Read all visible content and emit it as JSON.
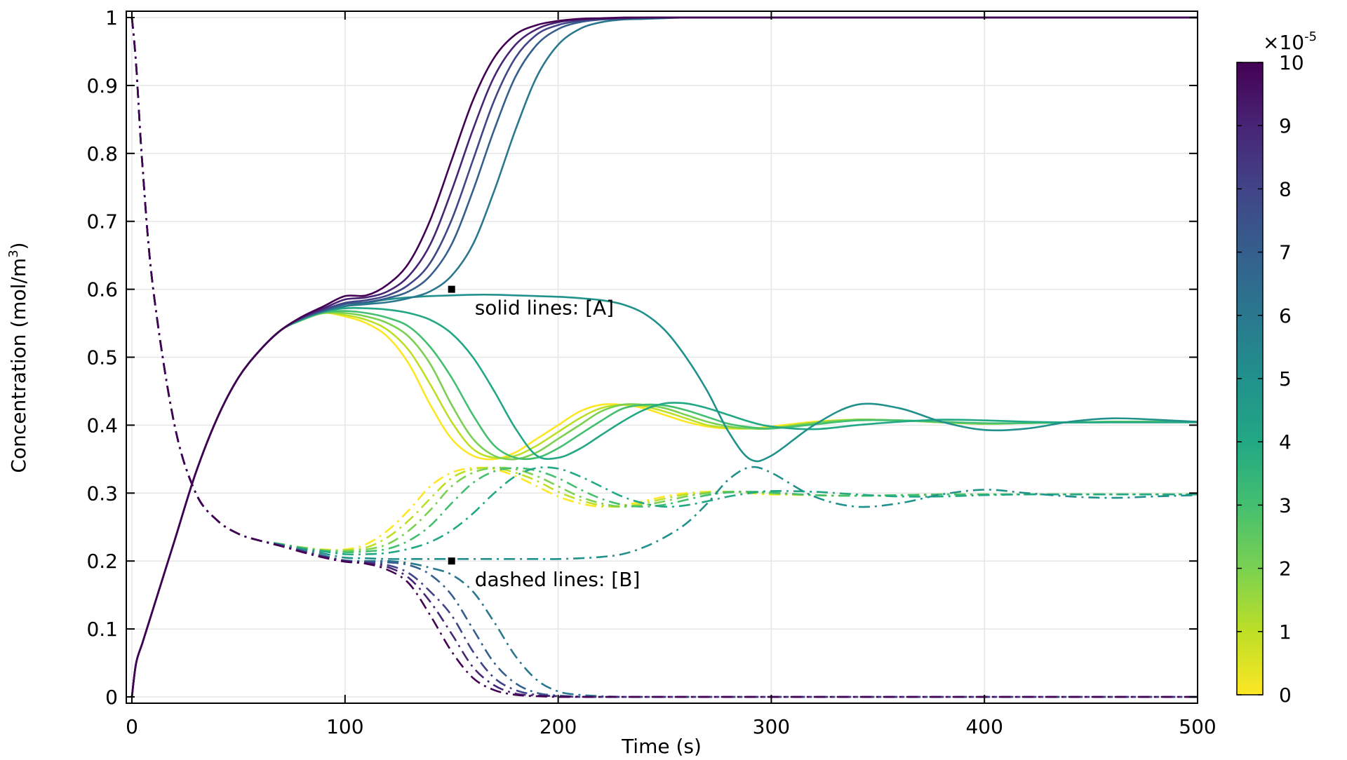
{
  "chart_data": {
    "type": "line",
    "xlabel": "Time (s)",
    "ylabel": "Concentration (mol/m³)",
    "ylabel_main": "Concentration (mol/m",
    "ylabel_sup": "3",
    "ylabel_end": ")",
    "xlim": [
      0,
      500
    ],
    "ylim": [
      0,
      1
    ],
    "xticks": [
      "0",
      "100",
      "200",
      "300",
      "400",
      "500"
    ],
    "yticks": [
      "0",
      "0.1",
      "0.2",
      "0.3",
      "0.4",
      "0.5",
      "0.6",
      "0.7",
      "0.8",
      "0.9",
      "1"
    ],
    "grid": true,
    "annotations": [
      {
        "text": "solid lines: [A]",
        "x": 150,
        "y": 0.6
      },
      {
        "text": "dashed lines: [B]",
        "x": 150,
        "y": 0.2
      }
    ],
    "colorbar": {
      "multiplier_base": "×10",
      "multiplier_exp": "-5",
      "range": [
        0,
        10
      ],
      "ticks": [
        "0",
        "1",
        "2",
        "3",
        "4",
        "5",
        "6",
        "7",
        "8",
        "9",
        "10"
      ],
      "colormap": "viridis-reversed",
      "colors": [
        "#fde725",
        "#bddf26",
        "#7ad151",
        "#44bf70",
        "#22a884",
        "#21918c",
        "#2a788e",
        "#355f8d",
        "#414487",
        "#482475",
        "#440154"
      ]
    },
    "x": [
      0,
      2,
      5,
      10,
      20,
      30,
      40,
      50,
      60,
      70,
      80,
      90,
      100,
      110,
      120,
      130,
      140,
      150,
      160,
      170,
      180,
      190,
      200,
      210,
      220,
      230,
      240,
      250,
      260,
      270,
      280,
      290,
      300,
      320,
      340,
      360,
      380,
      400,
      420,
      440,
      460,
      480,
      500
    ],
    "series": [
      {
        "param": 0,
        "species": "A",
        "style": "solid",
        "values": [
          0,
          0.05,
          0.08,
          0.13,
          0.23,
          0.33,
          0.41,
          0.47,
          0.51,
          0.54,
          0.555,
          0.565,
          0.56,
          0.55,
          0.53,
          0.49,
          0.43,
          0.38,
          0.355,
          0.35,
          0.36,
          0.38,
          0.4,
          0.42,
          0.43,
          0.43,
          0.425,
          0.415,
          0.405,
          0.398,
          0.395,
          0.395,
          0.398,
          0.405,
          0.408,
          0.407,
          0.404,
          0.402,
          0.403,
          0.404,
          0.405,
          0.405,
          0.405
        ]
      },
      {
        "param": 1,
        "species": "A",
        "style": "solid",
        "values": [
          0,
          0.05,
          0.08,
          0.13,
          0.23,
          0.33,
          0.41,
          0.47,
          0.51,
          0.54,
          0.555,
          0.565,
          0.562,
          0.555,
          0.54,
          0.51,
          0.46,
          0.405,
          0.365,
          0.352,
          0.355,
          0.37,
          0.39,
          0.41,
          0.425,
          0.43,
          0.428,
          0.42,
          0.41,
          0.4,
          0.396,
          0.395,
          0.396,
          0.404,
          0.408,
          0.407,
          0.404,
          0.402,
          0.403,
          0.404,
          0.405,
          0.405,
          0.405
        ]
      },
      {
        "param": 2,
        "species": "A",
        "style": "solid",
        "values": [
          0,
          0.05,
          0.08,
          0.13,
          0.23,
          0.33,
          0.41,
          0.47,
          0.51,
          0.54,
          0.555,
          0.565,
          0.565,
          0.56,
          0.55,
          0.53,
          0.49,
          0.43,
          0.38,
          0.355,
          0.35,
          0.36,
          0.38,
          0.4,
          0.42,
          0.43,
          0.43,
          0.425,
          0.415,
          0.405,
          0.398,
          0.395,
          0.395,
          0.403,
          0.408,
          0.407,
          0.404,
          0.402,
          0.403,
          0.404,
          0.405,
          0.405,
          0.405
        ]
      },
      {
        "param": 3,
        "species": "A",
        "style": "solid",
        "values": [
          0,
          0.05,
          0.08,
          0.13,
          0.23,
          0.33,
          0.41,
          0.47,
          0.51,
          0.54,
          0.555,
          0.566,
          0.568,
          0.565,
          0.558,
          0.545,
          0.515,
          0.47,
          0.415,
          0.37,
          0.352,
          0.352,
          0.366,
          0.386,
          0.406,
          0.424,
          0.43,
          0.429,
          0.422,
          0.412,
          0.402,
          0.397,
          0.395,
          0.401,
          0.407,
          0.407,
          0.405,
          0.403,
          0.403,
          0.404,
          0.405,
          0.405,
          0.405
        ]
      },
      {
        "param": 4,
        "species": "A",
        "style": "solid",
        "values": [
          0,
          0.05,
          0.08,
          0.13,
          0.23,
          0.33,
          0.41,
          0.47,
          0.51,
          0.54,
          0.556,
          0.567,
          0.572,
          0.572,
          0.57,
          0.565,
          0.555,
          0.535,
          0.5,
          0.45,
          0.395,
          0.355,
          0.352,
          0.365,
          0.385,
          0.405,
          0.422,
          0.432,
          0.432,
          0.425,
          0.415,
          0.405,
          0.398,
          0.394,
          0.4,
          0.405,
          0.408,
          0.407,
          0.405,
          0.404,
          0.404,
          0.404,
          0.404
        ]
      },
      {
        "param": 5,
        "species": "A",
        "style": "solid",
        "values": [
          0,
          0.05,
          0.08,
          0.13,
          0.23,
          0.33,
          0.41,
          0.47,
          0.51,
          0.54,
          0.557,
          0.568,
          0.575,
          0.58,
          0.585,
          0.588,
          0.59,
          0.591,
          0.592,
          0.592,
          0.591,
          0.59,
          0.589,
          0.587,
          0.584,
          0.578,
          0.565,
          0.54,
          0.5,
          0.45,
          0.39,
          0.35,
          0.355,
          0.4,
          0.43,
          0.425,
          0.405,
          0.393,
          0.395,
          0.405,
          0.41,
          0.408,
          0.405
        ]
      },
      {
        "param": 6,
        "species": "A",
        "style": "solid",
        "values": [
          0,
          0.05,
          0.08,
          0.13,
          0.23,
          0.33,
          0.41,
          0.47,
          0.51,
          0.54,
          0.557,
          0.568,
          0.575,
          0.578,
          0.581,
          0.587,
          0.597,
          0.62,
          0.666,
          0.745,
          0.835,
          0.913,
          0.96,
          0.983,
          0.993,
          0.997,
          0.998,
          0.999,
          1,
          1,
          1,
          1,
          1,
          1,
          1,
          1,
          1,
          1,
          1,
          1,
          1,
          1,
          1
        ]
      },
      {
        "param": 7,
        "species": "A",
        "style": "solid",
        "values": [
          0,
          0.05,
          0.08,
          0.13,
          0.23,
          0.33,
          0.41,
          0.47,
          0.51,
          0.54,
          0.558,
          0.569,
          0.578,
          0.581,
          0.587,
          0.597,
          0.62,
          0.666,
          0.745,
          0.835,
          0.913,
          0.96,
          0.983,
          0.993,
          0.997,
          0.998,
          0.999,
          1,
          1,
          1,
          1,
          1,
          1,
          1,
          1,
          1,
          1,
          1,
          1,
          1,
          1,
          1,
          1
        ]
      },
      {
        "param": 8,
        "species": "A",
        "style": "solid",
        "values": [
          0,
          0.05,
          0.08,
          0.13,
          0.23,
          0.33,
          0.41,
          0.47,
          0.51,
          0.54,
          0.558,
          0.57,
          0.58,
          0.584,
          0.591,
          0.607,
          0.639,
          0.702,
          0.79,
          0.878,
          0.941,
          0.975,
          0.989,
          0.995,
          0.998,
          0.999,
          1,
          1,
          1,
          1,
          1,
          1,
          1,
          1,
          1,
          1,
          1,
          1,
          1,
          1,
          1,
          1,
          1
        ]
      },
      {
        "param": 9,
        "species": "A",
        "style": "solid",
        "values": [
          0,
          0.05,
          0.08,
          0.13,
          0.23,
          0.33,
          0.41,
          0.47,
          0.51,
          0.54,
          0.559,
          0.572,
          0.585,
          0.588,
          0.597,
          0.62,
          0.666,
          0.745,
          0.835,
          0.913,
          0.96,
          0.983,
          0.993,
          0.997,
          0.998,
          0.999,
          1,
          1,
          1,
          1,
          1,
          1,
          1,
          1,
          1,
          1,
          1,
          1,
          1,
          1,
          1,
          1,
          1
        ]
      },
      {
        "param": 10,
        "species": "A",
        "style": "solid",
        "values": [
          0,
          0.05,
          0.08,
          0.13,
          0.23,
          0.33,
          0.41,
          0.47,
          0.51,
          0.54,
          0.56,
          0.575,
          0.59,
          0.591,
          0.607,
          0.639,
          0.702,
          0.79,
          0.878,
          0.941,
          0.975,
          0.989,
          0.995,
          0.998,
          0.999,
          1,
          1,
          1,
          1,
          1,
          1,
          1,
          1,
          1,
          1,
          1,
          1,
          1,
          1,
          1,
          1,
          1,
          1
        ]
      },
      {
        "param": 0,
        "species": "B",
        "style": "dash-dot",
        "values": [
          1,
          0.93,
          0.78,
          0.6,
          0.4,
          0.3,
          0.26,
          0.24,
          0.23,
          0.225,
          0.22,
          0.217,
          0.217,
          0.225,
          0.245,
          0.275,
          0.31,
          0.33,
          0.337,
          0.335,
          0.325,
          0.31,
          0.295,
          0.285,
          0.28,
          0.282,
          0.288,
          0.295,
          0.3,
          0.302,
          0.302,
          0.3,
          0.298,
          0.297,
          0.296,
          0.297,
          0.298,
          0.298,
          0.298,
          0.298,
          0.298,
          0.298,
          0.298
        ]
      },
      {
        "param": 1,
        "species": "B",
        "style": "dash-dot",
        "values": [
          1,
          0.93,
          0.78,
          0.6,
          0.4,
          0.3,
          0.26,
          0.24,
          0.23,
          0.225,
          0.22,
          0.216,
          0.216,
          0.22,
          0.235,
          0.26,
          0.292,
          0.322,
          0.335,
          0.337,
          0.33,
          0.318,
          0.302,
          0.29,
          0.282,
          0.28,
          0.285,
          0.292,
          0.298,
          0.301,
          0.302,
          0.301,
          0.299,
          0.297,
          0.296,
          0.297,
          0.298,
          0.298,
          0.298,
          0.298,
          0.298,
          0.298,
          0.298
        ]
      },
      {
        "param": 2,
        "species": "B",
        "style": "dash-dot",
        "values": [
          1,
          0.93,
          0.78,
          0.6,
          0.4,
          0.3,
          0.26,
          0.24,
          0.23,
          0.225,
          0.22,
          0.216,
          0.215,
          0.217,
          0.225,
          0.245,
          0.275,
          0.31,
          0.33,
          0.337,
          0.335,
          0.325,
          0.31,
          0.295,
          0.285,
          0.28,
          0.282,
          0.288,
          0.295,
          0.3,
          0.302,
          0.302,
          0.3,
          0.297,
          0.296,
          0.297,
          0.298,
          0.298,
          0.298,
          0.298,
          0.298,
          0.298,
          0.298
        ]
      },
      {
        "param": 3,
        "species": "B",
        "style": "dash-dot",
        "values": [
          1,
          0.93,
          0.78,
          0.6,
          0.4,
          0.3,
          0.26,
          0.24,
          0.23,
          0.225,
          0.219,
          0.215,
          0.213,
          0.214,
          0.218,
          0.23,
          0.252,
          0.285,
          0.315,
          0.332,
          0.337,
          0.333,
          0.322,
          0.306,
          0.292,
          0.283,
          0.28,
          0.283,
          0.29,
          0.297,
          0.301,
          0.302,
          0.301,
          0.297,
          0.296,
          0.297,
          0.298,
          0.298,
          0.298,
          0.298,
          0.298,
          0.298,
          0.298
        ]
      },
      {
        "param": 4,
        "species": "B",
        "style": "dash-dot",
        "values": [
          1,
          0.93,
          0.78,
          0.6,
          0.4,
          0.3,
          0.26,
          0.24,
          0.23,
          0.224,
          0.218,
          0.214,
          0.21,
          0.21,
          0.212,
          0.218,
          0.228,
          0.245,
          0.27,
          0.3,
          0.325,
          0.337,
          0.336,
          0.325,
          0.31,
          0.295,
          0.285,
          0.28,
          0.282,
          0.288,
          0.295,
          0.3,
          0.303,
          0.302,
          0.298,
          0.295,
          0.295,
          0.297,
          0.298,
          0.298,
          0.298,
          0.298,
          0.298
        ]
      },
      {
        "param": 5,
        "species": "B",
        "style": "dash-dot",
        "values": [
          1,
          0.93,
          0.78,
          0.6,
          0.4,
          0.3,
          0.26,
          0.24,
          0.23,
          0.224,
          0.217,
          0.211,
          0.205,
          0.204,
          0.203,
          0.203,
          0.203,
          0.203,
          0.203,
          0.203,
          0.203,
          0.203,
          0.203,
          0.204,
          0.206,
          0.21,
          0.22,
          0.235,
          0.255,
          0.285,
          0.32,
          0.338,
          0.33,
          0.295,
          0.28,
          0.285,
          0.298,
          0.305,
          0.3,
          0.295,
          0.293,
          0.295,
          0.297
        ]
      },
      {
        "param": 6,
        "species": "B",
        "style": "dash-dot",
        "values": [
          1,
          0.93,
          0.78,
          0.6,
          0.4,
          0.3,
          0.26,
          0.24,
          0.23,
          0.223,
          0.215,
          0.208,
          0.201,
          0.2,
          0.2,
          0.197,
          0.19,
          0.18,
          0.155,
          0.11,
          0.06,
          0.025,
          0.008,
          0.003,
          0.001,
          0,
          0,
          0,
          0,
          0,
          0,
          0,
          0,
          0,
          0,
          0,
          0,
          0,
          0,
          0,
          0,
          0,
          0
        ]
      },
      {
        "param": 7,
        "species": "B",
        "style": "dash-dot",
        "values": [
          1,
          0.93,
          0.78,
          0.6,
          0.4,
          0.3,
          0.26,
          0.24,
          0.23,
          0.223,
          0.215,
          0.207,
          0.2,
          0.199,
          0.198,
          0.194,
          0.18,
          0.15,
          0.1,
          0.05,
          0.02,
          0.006,
          0.002,
          0.0005,
          0,
          0,
          0,
          0,
          0,
          0,
          0,
          0,
          0,
          0,
          0,
          0,
          0,
          0,
          0,
          0,
          0,
          0,
          0
        ]
      },
      {
        "param": 8,
        "species": "B",
        "style": "dash-dot",
        "values": [
          1,
          0.93,
          0.78,
          0.6,
          0.4,
          0.3,
          0.26,
          0.24,
          0.23,
          0.223,
          0.214,
          0.206,
          0.2,
          0.198,
          0.194,
          0.182,
          0.155,
          0.12,
          0.067,
          0.028,
          0.01,
          0.003,
          0.001,
          0,
          0,
          0,
          0,
          0,
          0,
          0,
          0,
          0,
          0,
          0,
          0,
          0,
          0,
          0,
          0,
          0,
          0,
          0,
          0
        ]
      },
      {
        "param": 9,
        "species": "B",
        "style": "dash-dot",
        "values": [
          1,
          0.93,
          0.78,
          0.6,
          0.4,
          0.3,
          0.26,
          0.24,
          0.23,
          0.222,
          0.214,
          0.206,
          0.2,
          0.197,
          0.191,
          0.175,
          0.14,
          0.093,
          0.044,
          0.017,
          0.005,
          0.002,
          0.001,
          0,
          0,
          0,
          0,
          0,
          0,
          0,
          0,
          0,
          0,
          0,
          0,
          0,
          0,
          0,
          0,
          0,
          0,
          0,
          0
        ]
      },
      {
        "param": 10,
        "species": "B",
        "style": "dash-dot",
        "values": [
          1,
          0.93,
          0.78,
          0.6,
          0.4,
          0.3,
          0.26,
          0.24,
          0.23,
          0.222,
          0.213,
          0.205,
          0.199,
          0.196,
          0.187,
          0.167,
          0.12,
          0.067,
          0.028,
          0.01,
          0.003,
          0.001,
          0,
          0,
          0,
          0,
          0,
          0,
          0,
          0,
          0,
          0,
          0,
          0,
          0,
          0,
          0,
          0,
          0,
          0,
          0,
          0,
          0
        ]
      }
    ]
  }
}
